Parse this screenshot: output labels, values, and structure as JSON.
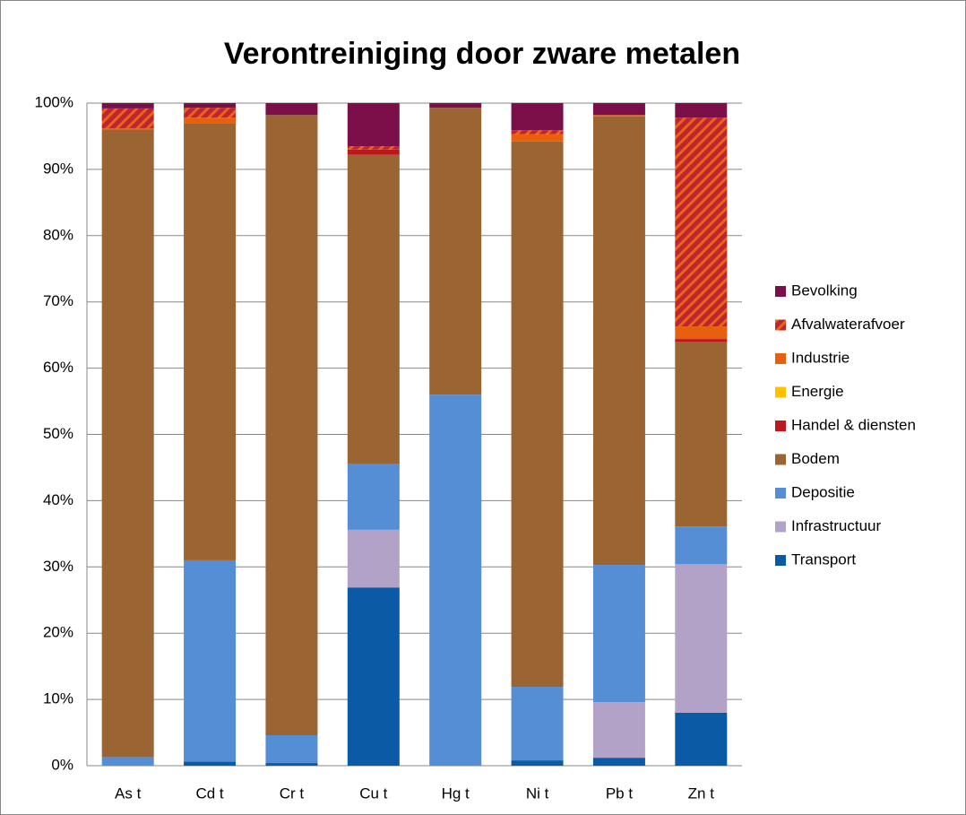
{
  "chart_data": {
    "type": "stacked_bar",
    "title": "Verontreiniging door zware metalen",
    "categories": [
      "As t",
      "Cd t",
      "Cr t",
      "Cu t",
      "Hg t",
      "Ni t",
      "Pb t",
      "Zn t"
    ],
    "series": [
      {
        "name": "Transport",
        "color": "#0b5aa6",
        "values": [
          0,
          0.6,
          0.4,
          26.9,
          0,
          0.8,
          1.2,
          8.0
        ]
      },
      {
        "name": "Infrastructuur",
        "color": "#b3a2c7",
        "values": [
          0,
          0,
          0,
          8.7,
          0,
          0,
          8.4,
          22.4
        ]
      },
      {
        "name": "Depositie",
        "color": "#558ed5",
        "values": [
          1.3,
          30.4,
          4.2,
          9.9,
          56.0,
          11.1,
          20.7,
          5.7
        ]
      },
      {
        "name": "Bodem",
        "color": "#9a6433",
        "values": [
          94.7,
          66.0,
          93.6,
          46.7,
          43.3,
          82.3,
          67.7,
          27.9
        ]
      },
      {
        "name": "Handel & diensten",
        "color": "#c0171f",
        "values": [
          0,
          0,
          0,
          0.8,
          0,
          0,
          0,
          0.4
        ]
      },
      {
        "name": "Energie",
        "color": "#ffc000",
        "values": [
          0,
          0,
          0,
          0,
          0,
          0,
          0,
          0
        ]
      },
      {
        "name": "Industrie",
        "color": "#e8600e",
        "values": [
          0.2,
          0.8,
          0,
          0,
          0,
          1.1,
          0.2,
          1.9
        ]
      },
      {
        "name": "Afvalwaterafvoer",
        "color": "#c0252d",
        "hatch_color": "#e8641b",
        "values": [
          3.0,
          1.5,
          0,
          0.5,
          0,
          0.6,
          0,
          31.5
        ]
      },
      {
        "name": "Bevolking",
        "color": "#7b0f4a",
        "values": [
          0.8,
          0.7,
          1.8,
          6.5,
          0.7,
          4.1,
          1.8,
          2.2
        ]
      }
    ],
    "ylim": [
      0,
      100
    ],
    "yticks": [
      {
        "value": 0,
        "label": "0%"
      },
      {
        "value": 10,
        "label": "10%"
      },
      {
        "value": 20,
        "label": "20%"
      },
      {
        "value": 30,
        "label": "30%"
      },
      {
        "value": 40,
        "label": "40%"
      },
      {
        "value": 50,
        "label": "50%"
      },
      {
        "value": 60,
        "label": "60%"
      },
      {
        "value": 70,
        "label": "70%"
      },
      {
        "value": 80,
        "label": "80%"
      },
      {
        "value": 90,
        "label": "90%"
      },
      {
        "value": 100,
        "label": "100%"
      }
    ],
    "grid": true,
    "legend": "right"
  }
}
